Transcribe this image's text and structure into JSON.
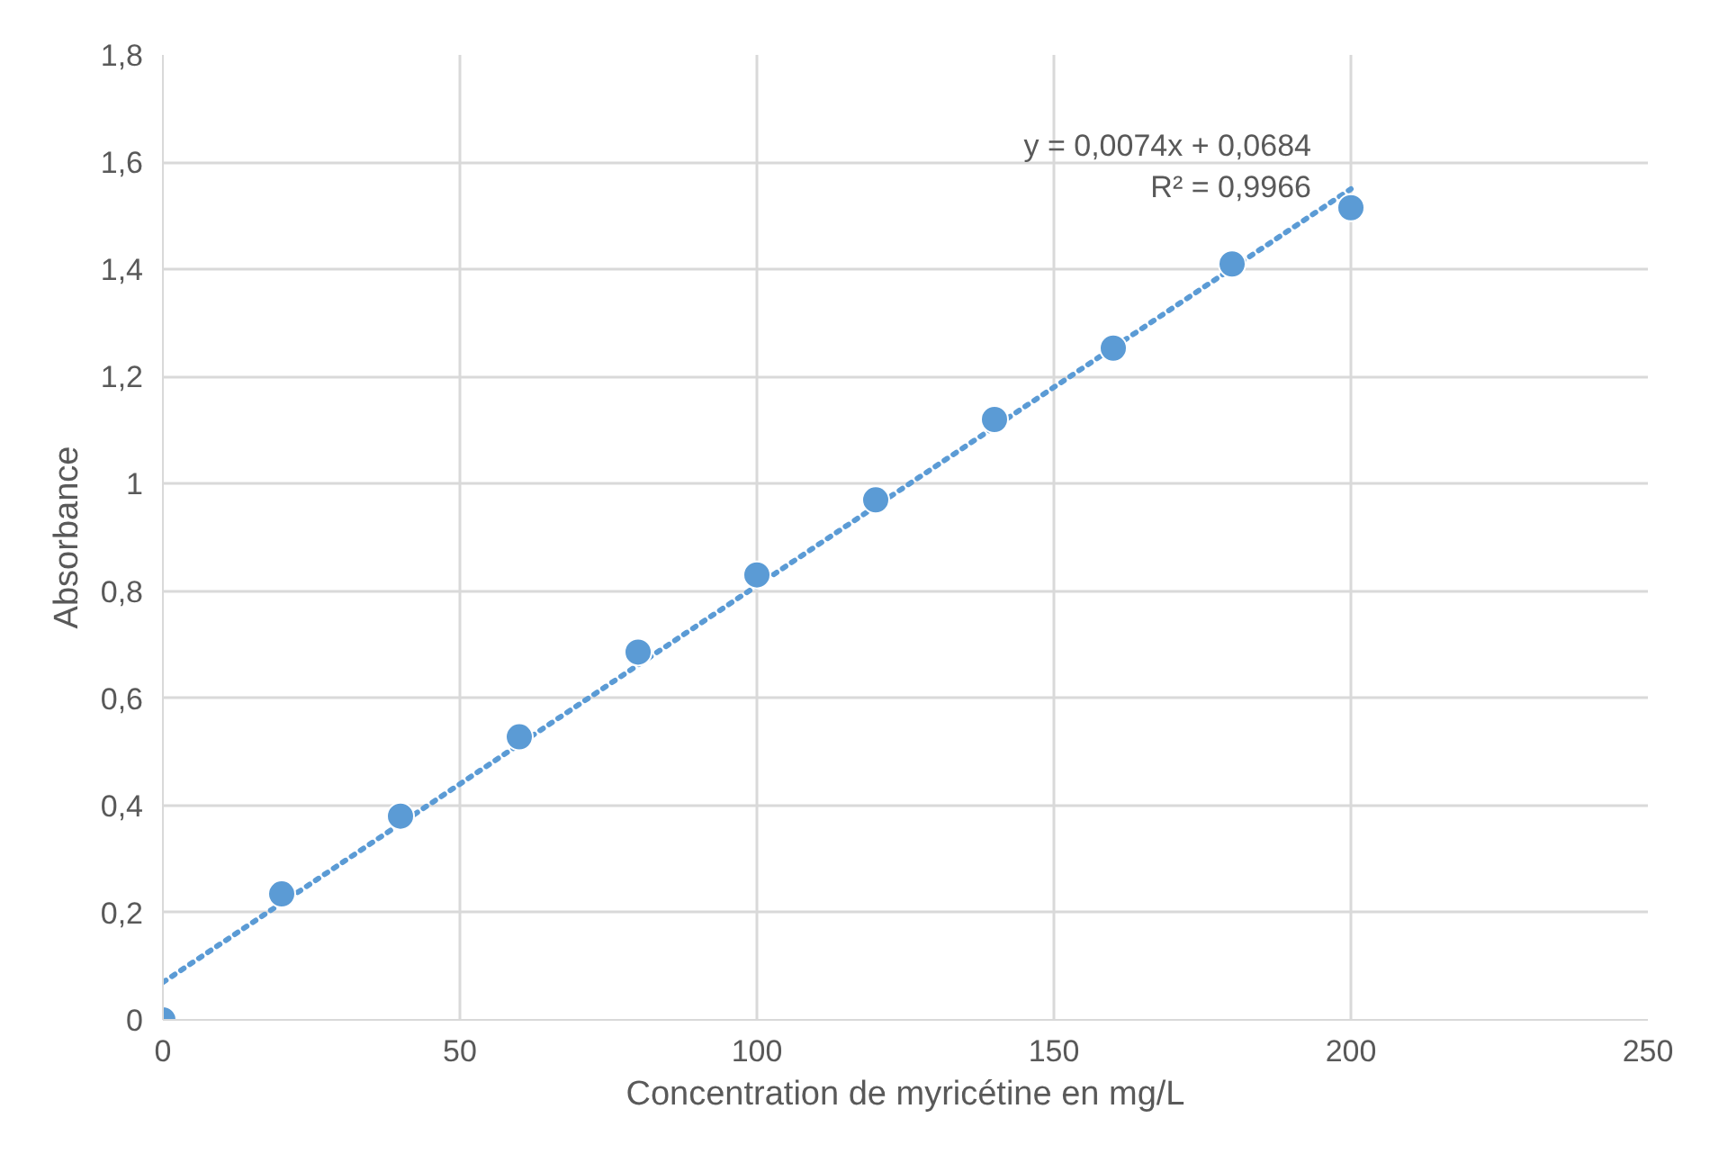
{
  "chart_data": {
    "type": "scatter",
    "xlabel": "Concentration de myricétine en mg/L",
    "ylabel": "Absorbance",
    "series": [
      {
        "color": "#5b9bd5",
        "marker": "circle",
        "x": [
          0,
          20,
          40,
          60,
          80,
          100,
          120,
          140,
          160,
          180,
          200
        ],
        "values": [
          0,
          0.235,
          0.38,
          0.528,
          0.686,
          0.83,
          0.97,
          1.12,
          1.253,
          1.41,
          1.515
        ]
      },
      {
        "type": "line",
        "color": "#5b9bd5",
        "line_style": "dotted",
        "marker": "none",
        "x": [
          0,
          200
        ],
        "values": [
          0.07,
          1.55
        ]
      }
    ],
    "annotations": [
      "y = 0,0074x + 0,0684\nR² = 0,9966"
    ],
    "xlim": [
      0,
      250
    ],
    "xticks": [
      0,
      50,
      100,
      150,
      200,
      250
    ],
    "ylim": [
      0,
      1.8
    ],
    "yticks": [
      {
        "value": 0,
        "label": "0"
      },
      {
        "value": 0.2,
        "label": "0,2"
      },
      {
        "value": 0.4,
        "label": "0,4"
      },
      {
        "value": 0.6,
        "label": "0,6"
      },
      {
        "value": 0.8,
        "label": "0,8"
      },
      {
        "value": 1,
        "label": "1"
      },
      {
        "value": 1.2,
        "label": "1,2"
      },
      {
        "value": 1.4,
        "label": "1,4"
      },
      {
        "value": 1.6,
        "label": "1,6"
      },
      {
        "value": 1.8,
        "label": "1,8"
      }
    ],
    "grid": true
  }
}
